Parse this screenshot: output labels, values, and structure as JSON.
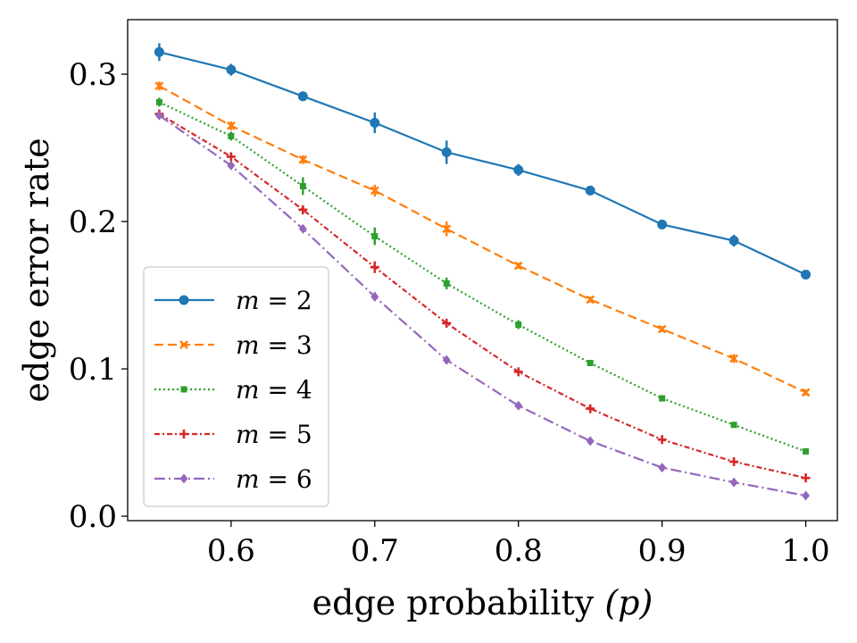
{
  "chart_data": {
    "type": "line",
    "xlabel": "edge probability (p)",
    "xlabel_main": "edge probability ",
    "xlabel_var": "(p)",
    "ylabel": "edge error rate",
    "xlim": [
      0.528,
      1.022
    ],
    "ylim": [
      -0.003,
      0.337
    ],
    "xticks": [
      0.6,
      0.7,
      0.8,
      0.9,
      1.0
    ],
    "xtick_labels": [
      "0.6",
      "0.7",
      "0.8",
      "0.9",
      "1.0"
    ],
    "yticks": [
      0.0,
      0.1,
      0.2,
      0.3
    ],
    "ytick_labels": [
      "0.0",
      "0.1",
      "0.2",
      "0.3"
    ],
    "grid": false,
    "legend_position": "lower-left",
    "x": [
      0.55,
      0.6,
      0.65,
      0.7,
      0.75,
      0.8,
      0.85,
      0.9,
      0.95,
      1.0
    ],
    "series": [
      {
        "name": "m = 2",
        "legend_var": "m",
        "legend_rest": " = 2",
        "color": "#1f77b4",
        "dash": "",
        "marker": "circle",
        "values": [
          0.315,
          0.303,
          0.285,
          0.267,
          0.247,
          0.235,
          0.221,
          0.198,
          0.187,
          0.164
        ],
        "errors": [
          0.006,
          0.004,
          0.002,
          0.007,
          0.008,
          0.004,
          0.002,
          0.003,
          0.004,
          0.003
        ]
      },
      {
        "name": "m = 3",
        "legend_var": "m",
        "legend_rest": " = 3",
        "color": "#ff7f0e",
        "dash": "10,5",
        "marker": "x",
        "values": [
          0.292,
          0.265,
          0.242,
          0.221,
          0.195,
          0.17,
          0.147,
          0.127,
          0.107,
          0.084
        ],
        "errors": [
          0.003,
          0.003,
          0.003,
          0.004,
          0.005,
          0.002,
          0.002,
          0.002,
          0.003,
          0.002
        ]
      },
      {
        "name": "m = 4",
        "legend_var": "m",
        "legend_rest": " = 4",
        "color": "#2ca02c",
        "dash": "2,3",
        "marker": "square",
        "values": [
          0.281,
          0.258,
          0.224,
          0.19,
          0.158,
          0.13,
          0.104,
          0.08,
          0.062,
          0.044
        ],
        "errors": [
          0.003,
          0.003,
          0.006,
          0.006,
          0.004,
          0.003,
          0.002,
          0.002,
          0.002,
          0.001
        ]
      },
      {
        "name": "m = 5",
        "legend_var": "m",
        "legend_rest": " = 5",
        "color": "#d62728",
        "dash": "6,3,2,3",
        "marker": "plus",
        "values": [
          0.273,
          0.244,
          0.208,
          0.169,
          0.131,
          0.098,
          0.073,
          0.052,
          0.037,
          0.026
        ],
        "errors": [
          0.002,
          0.003,
          0.003,
          0.004,
          0.003,
          0.002,
          0.002,
          0.002,
          0.001,
          0.001
        ]
      },
      {
        "name": "m = 6",
        "legend_var": "m",
        "legend_rest": " = 6",
        "color": "#9467bd",
        "dash": "12,4,2,4",
        "marker": "diamond",
        "values": [
          0.272,
          0.238,
          0.195,
          0.149,
          0.106,
          0.075,
          0.051,
          0.033,
          0.023,
          0.014
        ],
        "errors": [
          0.002,
          0.002,
          0.002,
          0.003,
          0.002,
          0.002,
          0.001,
          0.001,
          0.001,
          0.001
        ]
      }
    ]
  }
}
